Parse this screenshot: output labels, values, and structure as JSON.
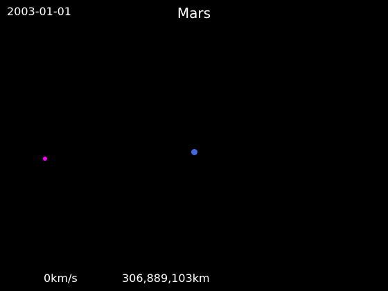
{
  "header": {
    "date": "2003-01-01",
    "title": "Mars"
  },
  "footer": {
    "speed": "0km/s",
    "distance": "306,889,103km"
  },
  "bodies": {
    "probe": {
      "icon": "spacecraft-marker",
      "color": "#ff00ff"
    },
    "mars": {
      "icon": "planet-marker",
      "color": "#4169e1"
    }
  },
  "colors": {
    "background": "#000000",
    "text": "#ffffff"
  }
}
